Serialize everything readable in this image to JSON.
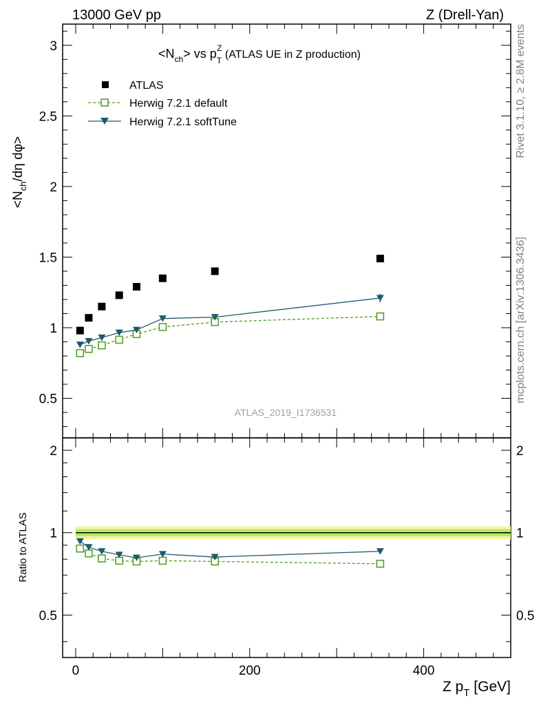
{
  "header": {
    "left": "13000 GeV pp",
    "right": "Z (Drell-Yan)"
  },
  "side_labels": {
    "rivet": "Rivet 3.1.10, ≥ 2.8M events",
    "mcplots": "mcplots.cern.ch [arXiv:1306.3436]"
  },
  "colors": {
    "atlas": "#000000",
    "default": "#4c9a1c",
    "softtune": "#1f5a6e",
    "band_green": "#b5ea6a",
    "band_yellow": "#f5f5a0"
  },
  "chart_data": [
    {
      "type": "scatter",
      "title_main": "<N",
      "title_sub": "ch",
      "title_mid": "> vs p",
      "title_sup": "Z",
      "title_sub2": "T",
      "title_tail": " (ATLAS UE in Z production)",
      "ylabel": "<N_ch/dη dφ>",
      "xlim": [
        -15,
        500
      ],
      "ylim": [
        0.22,
        3.15
      ],
      "yticks": [
        0.5,
        1,
        1.5,
        2,
        2.5,
        3
      ],
      "ytick_labels": [
        "0.5",
        "1",
        "1.5",
        "2",
        "2.5",
        "3"
      ],
      "watermark": "ATLAS_2019_I1736531",
      "legend": [
        "ATLAS",
        "Herwig 7.2.1 default",
        "Herwig 7.2.1 softTune"
      ],
      "x": [
        5,
        15,
        30,
        50,
        70,
        100,
        160,
        350
      ],
      "series": [
        {
          "name": "ATLAS",
          "values": [
            0.98,
            1.07,
            1.15,
            1.23,
            1.29,
            1.35,
            1.4,
            1.49
          ]
        },
        {
          "name": "Herwig 7.2.1 default",
          "values": [
            0.82,
            0.85,
            0.875,
            0.915,
            0.955,
            1.005,
            1.04,
            1.08
          ]
        },
        {
          "name": "Herwig 7.2.1 softTune",
          "values": [
            0.88,
            0.905,
            0.93,
            0.965,
            0.985,
            1.065,
            1.075,
            1.21
          ]
        }
      ]
    },
    {
      "type": "line",
      "ylabel": "Ratio to ATLAS",
      "xlabel_main": "Z p",
      "xlabel_sub": "T",
      "xlabel_tail": " [GeV]",
      "xlim": [
        -15,
        500
      ],
      "ylim": [
        0.35,
        2.22
      ],
      "yticks": [
        0.5,
        1,
        2
      ],
      "ytick_labels": [
        "0.5",
        "1",
        "2"
      ],
      "xticks": [
        0,
        200,
        400
      ],
      "xtick_labels": [
        "0",
        "200",
        "400"
      ],
      "x": [
        5,
        15,
        30,
        50,
        70,
        100,
        160,
        350
      ],
      "series": [
        {
          "name": "Herwig 7.2.1 default",
          "values": [
            0.875,
            0.84,
            0.805,
            0.79,
            0.785,
            0.79,
            0.785,
            0.77
          ]
        },
        {
          "name": "Herwig 7.2.1 softTune",
          "values": [
            0.93,
            0.885,
            0.855,
            0.83,
            0.81,
            0.835,
            0.815,
            0.855
          ]
        }
      ]
    }
  ]
}
